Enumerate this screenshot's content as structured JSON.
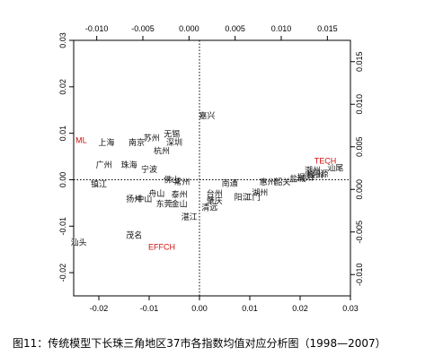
{
  "caption": "图11：传统模型下长珠三角地区37市各指数均值对应分析图（1998—2007）",
  "chart_data": {
    "type": "scatter",
    "title": "",
    "xlabel": "",
    "ylabel": "",
    "xlim": [
      -0.025,
      0.03
    ],
    "ylim": [
      -0.025,
      0.03
    ],
    "x_ticks": [
      "-0.02",
      "-0.01",
      "0.00",
      "0.01",
      "0.02",
      "0.03"
    ],
    "y_ticks": [
      "-0.02",
      "-0.01",
      "0.00",
      "0.01",
      "0.02",
      "0.03"
    ],
    "top_xlim": [
      -0.0125,
      0.0175
    ],
    "top_x_ticks": [
      "-0.010",
      "-0.005",
      "0.000",
      "0.005",
      "0.010",
      "0.015"
    ],
    "right_ylim": [
      -0.0125,
      0.0175
    ],
    "right_y_ticks": [
      "-0.010",
      "-0.005",
      "0.000",
      "0.005",
      "0.010",
      "0.015"
    ],
    "reference_lines": {
      "x": 0,
      "y": 0,
      "style": "dotted"
    },
    "grid": false,
    "cities": [
      {
        "label": "嘉兴",
        "x": 0.0015,
        "y": 0.0138
      },
      {
        "label": "无锡",
        "x": -0.0055,
        "y": 0.0098
      },
      {
        "label": "苏州",
        "x": -0.0095,
        "y": 0.009
      },
      {
        "label": "上海",
        "x": -0.0185,
        "y": 0.008
      },
      {
        "label": "南京",
        "x": -0.0125,
        "y": 0.008
      },
      {
        "label": "深圳",
        "x": -0.005,
        "y": 0.008
      },
      {
        "label": "杭州",
        "x": -0.0075,
        "y": 0.0062
      },
      {
        "label": "广州",
        "x": -0.019,
        "y": 0.0032
      },
      {
        "label": "珠海",
        "x": -0.014,
        "y": 0.0032
      },
      {
        "label": "宁波",
        "x": -0.01,
        "y": 0.0022
      },
      {
        "label": "镇江",
        "x": -0.02,
        "y": -0.001
      },
      {
        "label": "佛山",
        "x": -0.0055,
        "y": 0.0
      },
      {
        "label": "常州",
        "x": -0.0035,
        "y": -0.0005
      },
      {
        "label": "舟山",
        "x": -0.0085,
        "y": -0.003
      },
      {
        "label": "泰州",
        "x": -0.004,
        "y": -0.0032
      },
      {
        "label": "扬州",
        "x": -0.013,
        "y": -0.0042
      },
      {
        "label": "中山",
        "x": -0.011,
        "y": -0.0042
      },
      {
        "label": "东莞",
        "x": -0.007,
        "y": -0.0052
      },
      {
        "label": "金山",
        "x": -0.004,
        "y": -0.0052
      },
      {
        "label": "湛江",
        "x": -0.002,
        "y": -0.008
      },
      {
        "label": "茂名",
        "x": -0.013,
        "y": -0.012
      },
      {
        "label": "汕头",
        "x": -0.024,
        "y": -0.0135
      },
      {
        "label": "台州",
        "x": 0.003,
        "y": -0.003
      },
      {
        "label": "肇庆",
        "x": 0.003,
        "y": -0.0045
      },
      {
        "label": "清远",
        "x": 0.002,
        "y": -0.006
      },
      {
        "label": "南通",
        "x": 0.006,
        "y": -0.0008
      },
      {
        "label": "阳江",
        "x": 0.0085,
        "y": -0.0038
      },
      {
        "label": "江门",
        "x": 0.0105,
        "y": -0.0038
      },
      {
        "label": "湖州",
        "x": 0.012,
        "y": -0.0028
      },
      {
        "label": "惠州",
        "x": 0.0135,
        "y": -0.0005
      },
      {
        "label": "韶关",
        "x": 0.0165,
        "y": -0.0005
      },
      {
        "label": "盐城",
        "x": 0.0195,
        "y": 0.0002
      },
      {
        "label": "揭阳",
        "x": 0.021,
        "y": 0.0005
      },
      {
        "label": "梅州",
        "x": 0.023,
        "y": 0.001
      },
      {
        "label": "河源",
        "x": 0.024,
        "y": 0.0012
      },
      {
        "label": "汕尾",
        "x": 0.027,
        "y": 0.0025
      },
      {
        "label": "潮州",
        "x": 0.0225,
        "y": 0.002
      }
    ],
    "indices": [
      {
        "label": "ML",
        "x": -0.0235,
        "y": 0.0085
      },
      {
        "label": "TECH",
        "x": 0.025,
        "y": 0.004
      },
      {
        "label": "EFFCH",
        "x": -0.0075,
        "y": -0.0145
      }
    ]
  }
}
